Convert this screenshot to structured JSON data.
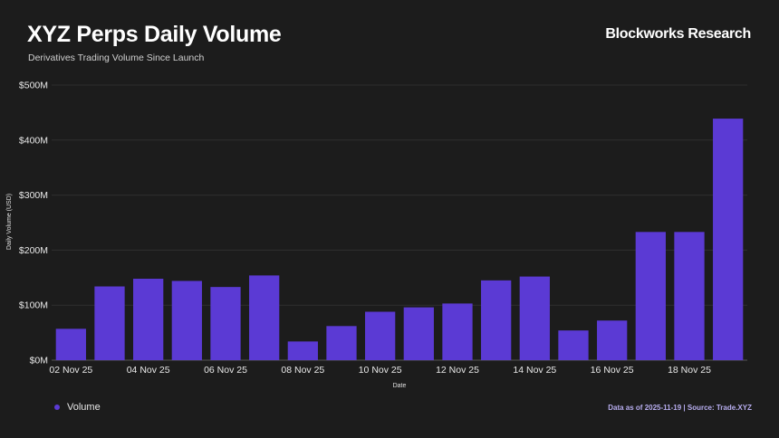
{
  "header": {
    "title": "XYZ Perps Daily Volume",
    "subtitle": "Derivatives Trading Volume Since Launch",
    "brand": "Blockworks Research"
  },
  "footer": {
    "legend_label": "Volume",
    "source": "Data as of 2025-11-19 | Source: Trade.XYZ"
  },
  "colors": {
    "bar": "#5b3ad4",
    "background": "#1c1c1c",
    "grid": "#2e2e2e"
  },
  "chart_data": {
    "type": "bar",
    "title": "XYZ Perps Daily Volume",
    "subtitle": "Derivatives Trading Volume Since Launch",
    "xlabel": "Date",
    "ylabel": "Daily Volume (USD)",
    "ylim": [
      0,
      500
    ],
    "y_unit": "M USD",
    "y_ticks": [
      0,
      100,
      200,
      300,
      400,
      500
    ],
    "y_tick_labels": [
      "$0M",
      "$100M",
      "$200M",
      "$300M",
      "$400M",
      "$500M"
    ],
    "categories": [
      "02 Nov 25",
      "03 Nov 25",
      "04 Nov 25",
      "05 Nov 25",
      "06 Nov 25",
      "07 Nov 25",
      "08 Nov 25",
      "09 Nov 25",
      "10 Nov 25",
      "11 Nov 25",
      "12 Nov 25",
      "13 Nov 25",
      "14 Nov 25",
      "15 Nov 25",
      "16 Nov 25",
      "17 Nov 25",
      "18 Nov 25",
      "19 Nov 25"
    ],
    "x_tick_labels": [
      "02 Nov 25",
      "",
      "04 Nov 25",
      "",
      "06 Nov 25",
      "",
      "08 Nov 25",
      "",
      "10 Nov 25",
      "",
      "12 Nov 25",
      "",
      "14 Nov 25",
      "",
      "16 Nov 25",
      "",
      "18 Nov 25",
      ""
    ],
    "series": [
      {
        "name": "Volume",
        "values": [
          57,
          134,
          148,
          144,
          133,
          154,
          34,
          62,
          88,
          96,
          103,
          145,
          152,
          54,
          72,
          233,
          233,
          439
        ]
      }
    ],
    "legend": "bottom-left",
    "grid": true
  }
}
